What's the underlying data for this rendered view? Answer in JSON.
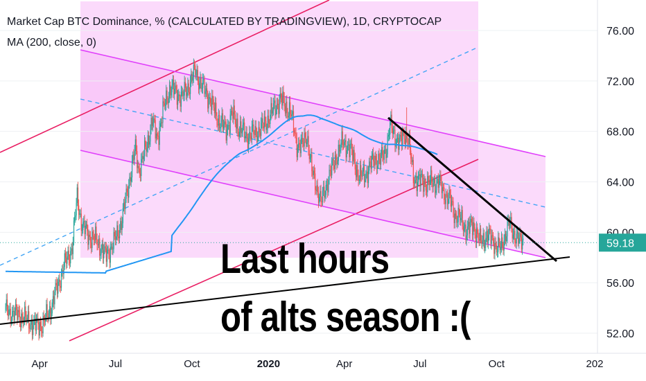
{
  "legend": {
    "title": "Market Cap BTC Dominance, % (CALCULATED BY TRADINGVIEW), 1D, CRYPTOCAP",
    "indicator": "MA (200, close, 0)"
  },
  "annotation": {
    "line1": "Last hours",
    "line2": "of alts season :("
  },
  "colors": {
    "up": "#26a69a",
    "down": "#ef5350",
    "ma": "#2196f3",
    "channel": "#e040fb",
    "red_channel": "#e91e63",
    "fill": "#f8bbf8",
    "midline": "#42a5f5",
    "trendline": "#000000",
    "last_price_bg": "#26a69a",
    "last_price_line": "#26a69a"
  },
  "chart_data": {
    "type": "candlestick",
    "title": "Market Cap BTC Dominance, % (CALCULATED BY TRADINGVIEW), 1D, CRYPTOCAP",
    "series": [
      {
        "name": "Market Cap BTC Dominance"
      },
      {
        "name": "MA (200, close, 0)"
      }
    ],
    "y_ticks": [
      "52.00",
      "56.00",
      "60.00",
      "64.00",
      "68.00",
      "72.00",
      "76.00"
    ],
    "x_ticks": [
      "Apr",
      "Jul",
      "Oct",
      "2020",
      "Apr",
      "Jul",
      "Oct",
      "202"
    ],
    "last_price": "59.18",
    "y_range": [
      51,
      78
    ],
    "candles": [],
    "ma_points": [],
    "annotations": [
      "Last hours",
      "of alts season :("
    ]
  }
}
